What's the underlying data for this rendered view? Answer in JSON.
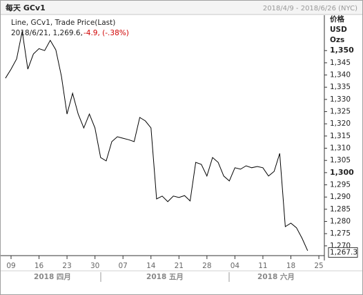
{
  "chart_data": {
    "type": "line",
    "title": "每天 GCv1",
    "date_range": "2018/4/9 - 2018/6/26 (NYC)",
    "y_axis_label": [
      "价格",
      "USD",
      "Ozs"
    ],
    "info_line": "2018/6/21, 1,269.6,",
    "info_change": "-4.9, (-.38%)",
    "categories": [
      null,
      "09",
      null,
      null,
      null,
      null,
      "16",
      null,
      null,
      null,
      null,
      "23",
      null,
      null,
      null,
      null,
      "30",
      null,
      null,
      null,
      null,
      "07",
      null,
      null,
      null,
      null,
      "14",
      null,
      null,
      null,
      null,
      "21",
      null,
      null,
      null,
      null,
      "28",
      null,
      null,
      null,
      null,
      "04",
      null,
      null,
      null,
      null,
      "11",
      null,
      null,
      null,
      null,
      "18",
      null,
      null,
      null,
      null,
      "25"
    ],
    "series": [
      {
        "name": "Line, GCv1, Trade Price(Last)",
        "color": "#000000",
        "values": [
          1338.7,
          1342.4,
          1346.6,
          1357.9,
          1342.4,
          1348.6,
          1350.8,
          1350.0,
          1354.2,
          1350.3,
          1339.5,
          1324.0,
          1332.5,
          1324.0,
          1318.3,
          1324.0,
          1318.3,
          1306.2,
          1304.8,
          1312.7,
          1314.7,
          1314.1,
          1313.5,
          1312.7,
          1322.6,
          1321.2,
          1318.3,
          1289.2,
          1290.4,
          1288.1,
          1290.4,
          1289.8,
          1290.6,
          1288.4,
          1304.2,
          1303.4,
          1298.6,
          1306.2,
          1304.2,
          1298.6,
          1296.6,
          1302.0,
          1301.4,
          1302.8,
          1302.0,
          1302.5,
          1302.0,
          1298.6,
          1300.5,
          1307.9,
          1277.9,
          1279.3,
          1277.4,
          1273.1,
          1268.0,
          null,
          null
        ]
      }
    ],
    "last_price": {
      "value": 1267.3,
      "label": "1,267.3"
    },
    "month_labels": [
      "2018 四月",
      "2018 五月",
      "2018 六月"
    ],
    "ylim": [
      1266,
      1364.5
    ],
    "yticks": [
      {
        "value": 1270,
        "label": "1,270"
      },
      {
        "value": 1275,
        "label": "1,275"
      },
      {
        "value": 1280,
        "label": "1,280"
      },
      {
        "value": 1285,
        "label": "1,285"
      },
      {
        "value": 1290,
        "label": "1,290"
      },
      {
        "value": 1295,
        "label": "1,295"
      },
      {
        "value": 1300,
        "label": "1,300"
      },
      {
        "value": 1305,
        "label": "1,305"
      },
      {
        "value": 1310,
        "label": "1,310"
      },
      {
        "value": 1315,
        "label": "1,315"
      },
      {
        "value": 1320,
        "label": "1,320"
      },
      {
        "value": 1325,
        "label": "1,325"
      },
      {
        "value": 1330,
        "label": "1,330"
      },
      {
        "value": 1335,
        "label": "1,335"
      },
      {
        "value": 1340,
        "label": "1,340"
      },
      {
        "value": 1345,
        "label": "1,345"
      },
      {
        "value": 1350,
        "label": "1,350"
      }
    ],
    "grid": false
  }
}
